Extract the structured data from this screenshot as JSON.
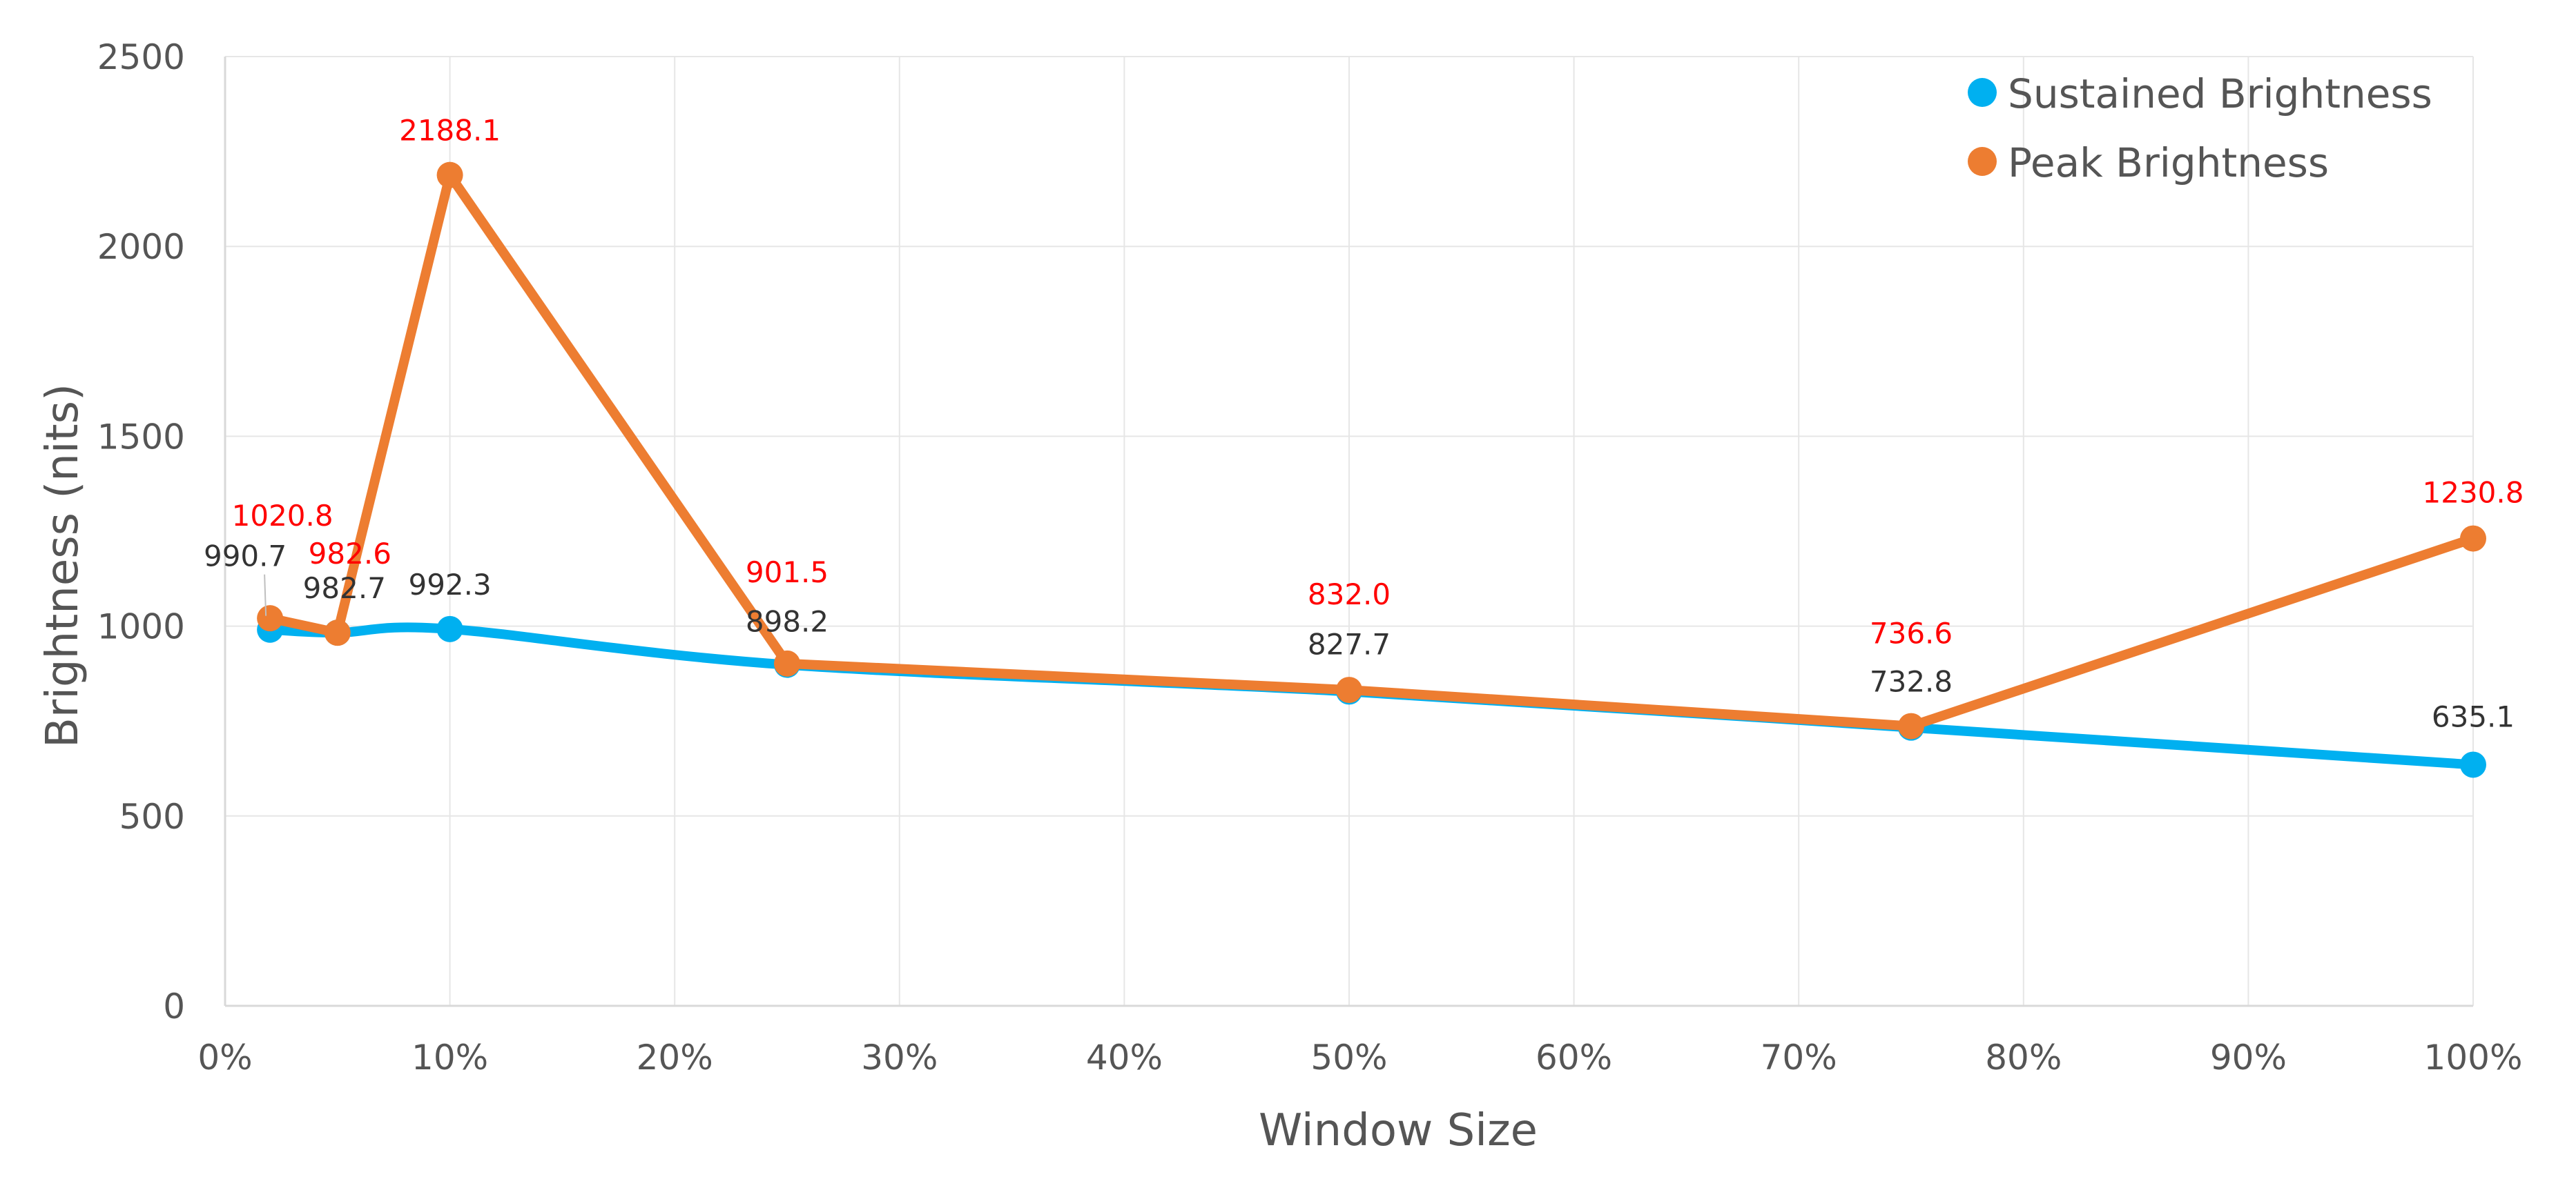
{
  "chart_data": {
    "type": "line",
    "xlabel": "Window Size",
    "ylabel": "Brightness (nits)",
    "xlim": [
      0,
      100
    ],
    "ylim": [
      0,
      2500
    ],
    "x_ticks": [
      "0%",
      "10%",
      "20%",
      "30%",
      "40%",
      "50%",
      "60%",
      "70%",
      "80%",
      "90%",
      "100%"
    ],
    "y_ticks": [
      "0",
      "500",
      "1000",
      "1500",
      "2000",
      "2500"
    ],
    "grid": true,
    "legend_position": "top-right",
    "series": [
      {
        "name": "Sustained Brightness",
        "color": "#00b0f0",
        "smooth": true,
        "x": [
          2,
          5,
          10,
          25,
          50,
          75,
          100
        ],
        "values": [
          990.7,
          982.7,
          992.3,
          898.2,
          827.7,
          732.8,
          635.1
        ],
        "labels": [
          "990.7",
          "982.7",
          "992.3",
          "898.2",
          "827.7",
          "732.8",
          "635.1"
        ]
      },
      {
        "name": "Peak Brightness",
        "color": "#ed7d31",
        "smooth": false,
        "x": [
          2,
          5,
          10,
          25,
          50,
          75,
          100
        ],
        "values": [
          1020.8,
          982.6,
          2188.1,
          901.5,
          832.0,
          736.6,
          1230.8
        ],
        "labels": [
          "1020.8",
          "982.6",
          "2188.1",
          "901.5",
          "832.0",
          "736.6",
          "1230.8"
        ]
      }
    ]
  }
}
